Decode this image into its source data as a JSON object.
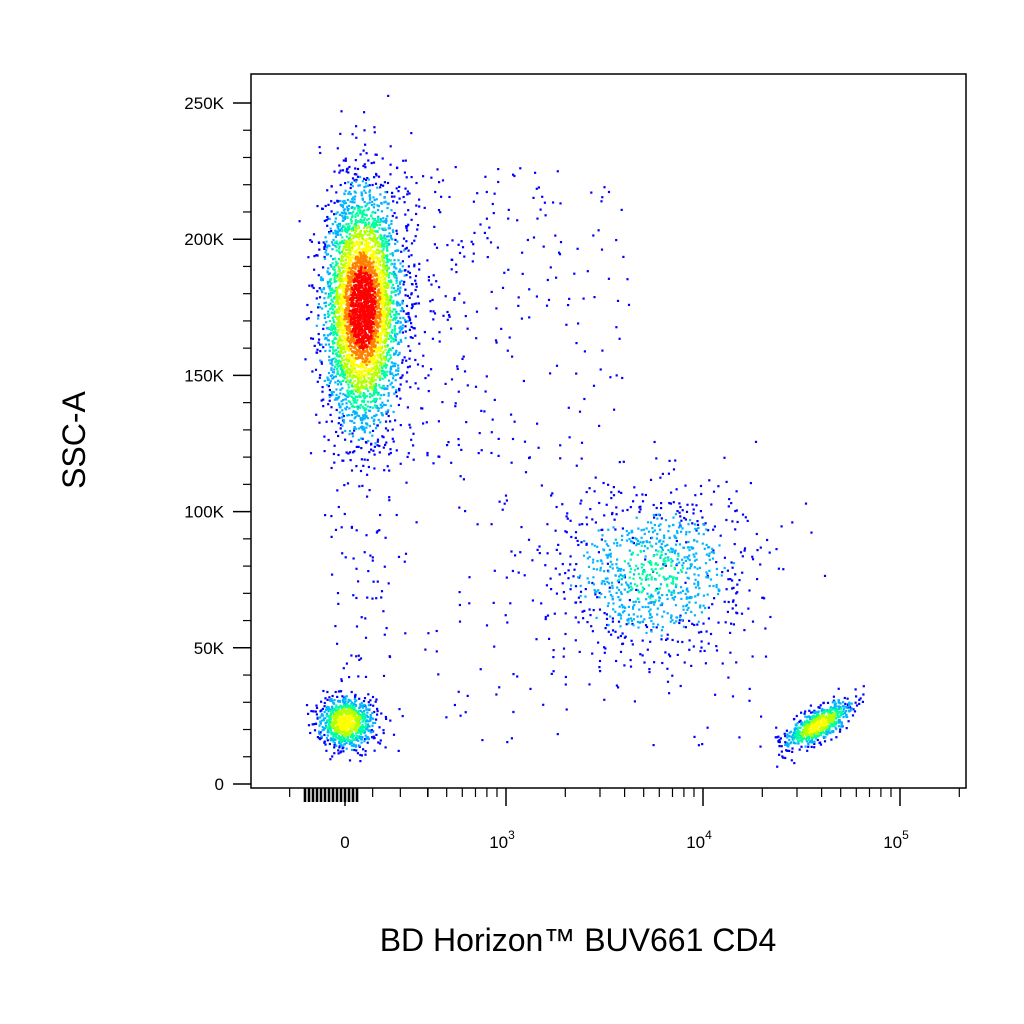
{
  "chart_data": {
    "type": "scatter",
    "style": "flow-cytometry density dot plot (pseudocolor)",
    "xlabel": "BD Horizon™ BUV661 CD4",
    "ylabel": "SSC-A",
    "x_scale": "biexponential (linear near 0, log above ~10^2.5)",
    "y_scale": "linear",
    "ylim": [
      0,
      260000
    ],
    "y_ticks": [
      {
        "value": 0,
        "label": "0"
      },
      {
        "value": 50000,
        "label": "50K"
      },
      {
        "value": 100000,
        "label": "100K"
      },
      {
        "value": 150000,
        "label": "150K"
      },
      {
        "value": 200000,
        "label": "200K"
      },
      {
        "value": 250000,
        "label": "250K"
      }
    ],
    "x_ticks": [
      {
        "value": 0,
        "base": "0",
        "exp": ""
      },
      {
        "value": 1000,
        "base": "10",
        "exp": "3"
      },
      {
        "value": 10000,
        "base": "10",
        "exp": "4"
      },
      {
        "value": 100000,
        "base": "10",
        "exp": "5"
      }
    ],
    "populations": [
      {
        "name": "CD4- high-SSC",
        "x_center": 60,
        "y_center": 175000,
        "relative_density": "very high"
      },
      {
        "name": "CD4- low-SSC",
        "x_center": 0,
        "y_center": 23000,
        "relative_density": "high"
      },
      {
        "name": "CD4 intermediate",
        "x_center": 5500,
        "y_center": 78000,
        "relative_density": "medium"
      },
      {
        "name": "CD4+ low-SSC",
        "x_center": 38000,
        "y_center": 22000,
        "relative_density": "high"
      }
    ],
    "color_scale": [
      "#0000ff",
      "#00b4ff",
      "#00ffa0",
      "#b4ff00",
      "#ffff00",
      "#ff8000",
      "#ff0000"
    ],
    "grid": false,
    "legend": "none"
  },
  "labels": {
    "y_title": "SSC-A",
    "x_title": "BD Horizon™ BUV661 CD4"
  }
}
